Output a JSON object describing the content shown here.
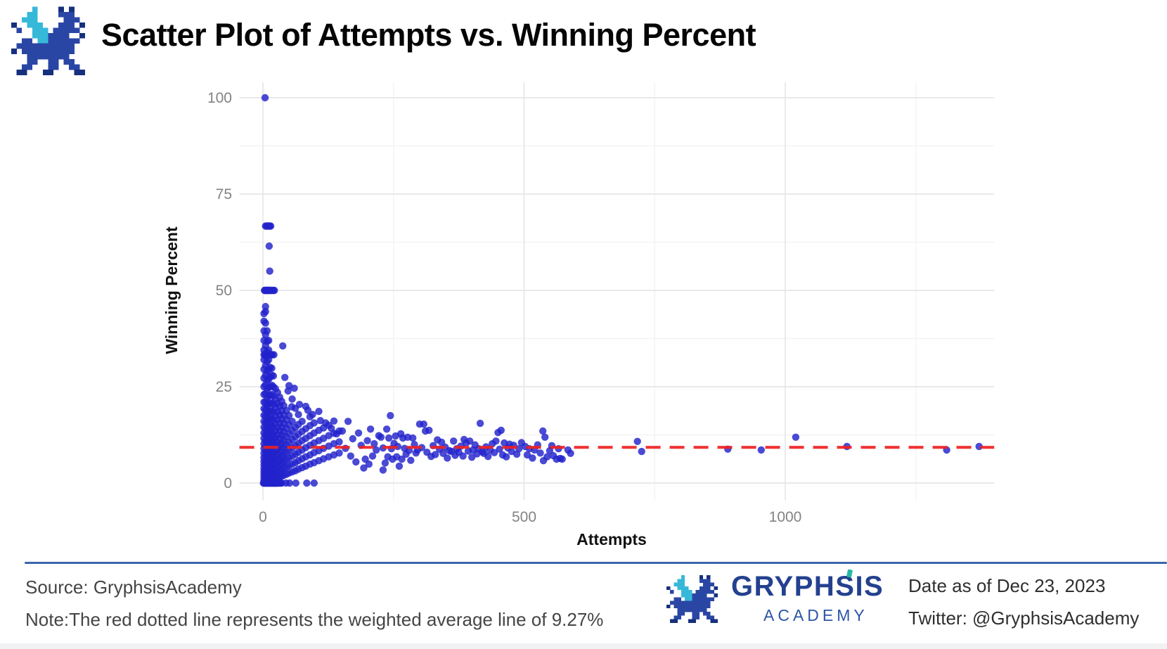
{
  "header": {
    "title": "Scatter Plot of Attempts vs. Winning Percent"
  },
  "footer": {
    "source": "Source: GryphsisAcademy",
    "note": "Note:The red dotted line represents the weighted average line of 9.27%",
    "date": "Date as of Dec 23, 2023",
    "twitter": "Twitter: @GryphsisAcademy",
    "brand_name": "GRYPHSIS",
    "brand_sub": "ACADEMY",
    "rule_color": "#3a66ad"
  },
  "chart_data": {
    "type": "scatter",
    "title": "Scatter Plot of Attempts vs. Winning Percent",
    "xlabel": "Attempts",
    "ylabel": "Winning Percent",
    "x_ticks": [
      0,
      500,
      1000
    ],
    "x_minor_gridlines": [
      250,
      750,
      1250
    ],
    "y_ticks": [
      0,
      25,
      50,
      75,
      100
    ],
    "y_minor_gridlines": [
      12.5,
      37.5,
      62.5,
      87.5
    ],
    "xlim": [
      -45,
      1400
    ],
    "ylim": [
      -4.5,
      104
    ],
    "grid": "on",
    "legend": "none",
    "point_color": "#2222cc",
    "tick_label_color": "#838383",
    "major_grid_color": "#e6e6e6",
    "minor_grid_color": "#f3f3f3",
    "average_line": {
      "value": 9.27,
      "color": "#ee2222",
      "style": "dashed",
      "meaning": "weighted average line of 9.27%"
    },
    "outlier_points": [
      [
        4,
        100
      ],
      [
        12,
        61.5
      ],
      [
        13,
        55
      ]
    ],
    "row_clusters": [
      {
        "y": 66.7,
        "xs": [
          5,
          7,
          9,
          11,
          13,
          15
        ]
      },
      {
        "y": 50,
        "xs": [
          3,
          4,
          5,
          6,
          7,
          8,
          9,
          10,
          11,
          12,
          13,
          14,
          16,
          18,
          20,
          22
        ]
      },
      {
        "y": 33.3,
        "xs": [
          2,
          4,
          6,
          8,
          10,
          12,
          14,
          16,
          18,
          21
        ]
      },
      {
        "y": 0,
        "xs": [
          1,
          2,
          3,
          4,
          5,
          6,
          7,
          8,
          9,
          10,
          11,
          12,
          13,
          14,
          15,
          16,
          17,
          18,
          19,
          20,
          21,
          22,
          23,
          24,
          25,
          26,
          27,
          28,
          30,
          32,
          34,
          36,
          44,
          51,
          63,
          84,
          98
        ]
      }
    ],
    "dense_columns": [
      {
        "x": 2,
        "ys": [
          0.7,
          1.4,
          2.2,
          3,
          3.8,
          4.7,
          5.6,
          6.6,
          7.7,
          8.9,
          10.2,
          11.6,
          13,
          14.5,
          16,
          17.6,
          19.3,
          21,
          23,
          25,
          27.2,
          29.5,
          32,
          34.5,
          37,
          39.5,
          42,
          44
        ]
      },
      {
        "x": 5,
        "ys": [
          1,
          1.8,
          2.7,
          3.6,
          4.6,
          5.7,
          6.9,
          8.2,
          9.6,
          11,
          12.5,
          14,
          15.6,
          17.3,
          19,
          21,
          23.2,
          25.5,
          28,
          30.5,
          33,
          35.7,
          38.5,
          41.5,
          44.5,
          45.8
        ]
      },
      {
        "x": 8,
        "ys": [
          0.6,
          1.5,
          2.5,
          3.5,
          4.6,
          5.8,
          7,
          8.3,
          9.7,
          11.2,
          12.8,
          14.4,
          16.1,
          18,
          20,
          22,
          24.3,
          26.7,
          29,
          31.5,
          34,
          36.8,
          39.5
        ]
      },
      {
        "x": 11,
        "ys": [
          1.2,
          2.3,
          3.4,
          4.6,
          5.8,
          7.1,
          8.5,
          10,
          11.5,
          13.1,
          14.8,
          16.6,
          18.5,
          20.5,
          22.6,
          24.8,
          27,
          29.5,
          32,
          34.5,
          37
        ]
      },
      {
        "x": 14,
        "ys": [
          0.8,
          1.9,
          3.1,
          4.3,
          5.6,
          7,
          8.4,
          9.9,
          11.5,
          13.2,
          15,
          16.8,
          18.7,
          20.7,
          22.8,
          25,
          27.5,
          30,
          33.3
        ]
      },
      {
        "x": 17,
        "ys": [
          1.4,
          2.6,
          3.9,
          5.2,
          6.6,
          8.1,
          9.7,
          11.3,
          13,
          14.8,
          16.7,
          18.7,
          20.8,
          23,
          25.4,
          28,
          29.8
        ]
      },
      {
        "x": 20,
        "ys": [
          0.9,
          2.1,
          3.4,
          4.8,
          6.2,
          7.7,
          9.3,
          10.9,
          12.6,
          14.4,
          16.3,
          18.3,
          20.4,
          22.6,
          25,
          27.8
        ]
      },
      {
        "x": 24,
        "ys": [
          1.1,
          2.4,
          3.8,
          5.2,
          6.7,
          8.3,
          10,
          11.7,
          13.5,
          15.4,
          17.4,
          19.5,
          21.7,
          24.5
        ]
      },
      {
        "x": 28,
        "ys": [
          1.3,
          2.7,
          4.2,
          5.7,
          7.3,
          9,
          10.7,
          12.5,
          14.4,
          16.4,
          18.5,
          20.7,
          23.5
        ]
      },
      {
        "x": 32,
        "ys": [
          1.6,
          3.1,
          4.7,
          6.3,
          8,
          9.8,
          11.7,
          13.6,
          15.6,
          17.7,
          20,
          22.3
        ]
      },
      {
        "x": 36,
        "ys": [
          1.8,
          3.4,
          5.1,
          6.8,
          8.6,
          10.5,
          12.5,
          14.5,
          16.6,
          18.8,
          21.2
        ]
      },
      {
        "x": 40,
        "ys": [
          2,
          3.7,
          5.5,
          7.3,
          9.2,
          11.2,
          13.3,
          15.4,
          17.6,
          20.1
        ]
      },
      {
        "x": 45,
        "ys": [
          2.3,
          4.1,
          6,
          7.9,
          9.9,
          12,
          14.2,
          16.4,
          18.8
        ]
      },
      {
        "x": 50,
        "ys": [
          2.6,
          4.5,
          6.5,
          8.5,
          10.6,
          12.8,
          15.1,
          17.5,
          25.3
        ]
      },
      {
        "x": 56,
        "ys": [
          2.9,
          4.9,
          7,
          9.1,
          11.3,
          13.6,
          16,
          21.8
        ]
      },
      {
        "x": 62,
        "ys": [
          3.2,
          5.3,
          7.5,
          9.7,
          12,
          14.4,
          19.4
        ]
      },
      {
        "x": 68,
        "ys": [
          3.6,
          5.8,
          8,
          10.3,
          12.7,
          15.2,
          17.8
        ]
      },
      {
        "x": 75,
        "ys": [
          4,
          6.3,
          8.6,
          11,
          13.4,
          16
        ]
      },
      {
        "x": 82,
        "ys": [
          4.4,
          6.8,
          9.2,
          11.6,
          14.1,
          19.9
        ]
      },
      {
        "x": 90,
        "ys": [
          4.9,
          7.3,
          9.8,
          12.3,
          14.9,
          17.2
        ]
      },
      {
        "x": 98,
        "ys": [
          5.3,
          7.9,
          10.4,
          13,
          15.6
        ]
      },
      {
        "x": 107,
        "ys": [
          5.8,
          8.4,
          11,
          13.7,
          18.6
        ]
      },
      {
        "x": 116,
        "ys": [
          6.3,
          9,
          11.6,
          14.3
        ]
      },
      {
        "x": 126,
        "ys": [
          6.8,
          9.6,
          12.3,
          15
        ]
      },
      {
        "x": 136,
        "ys": [
          7.3,
          10.2,
          12.9,
          16.1
        ]
      },
      {
        "x": 146,
        "ys": [
          7.8,
          10.7,
          13.5
        ]
      }
    ],
    "scatter_points": [
      [
        38,
        35.6
      ],
      [
        42,
        27.4
      ],
      [
        48,
        23.9
      ],
      [
        55,
        19.8
      ],
      [
        60,
        24.6
      ],
      [
        70,
        20.4
      ],
      [
        86,
        18.9
      ],
      [
        95,
        17.8
      ],
      [
        110,
        16.2
      ],
      [
        120,
        15.6
      ],
      [
        131,
        14.2
      ],
      [
        141,
        12.8
      ],
      [
        152,
        13.5
      ],
      [
        158,
        9
      ],
      [
        163,
        16
      ],
      [
        168,
        7
      ],
      [
        172,
        11.5
      ],
      [
        178,
        5.5
      ],
      [
        183,
        13
      ],
      [
        188,
        9.8
      ],
      [
        193,
        3.9
      ],
      [
        196,
        6.2
      ],
      [
        200,
        11
      ],
      [
        203,
        4.9
      ],
      [
        206,
        14
      ],
      [
        210,
        7
      ],
      [
        213,
        10.2
      ],
      [
        217,
        8.6
      ],
      [
        222,
        12.3
      ],
      [
        226,
        11.9
      ],
      [
        230,
        9.1
      ],
      [
        230,
        3.4
      ],
      [
        234,
        5.2
      ],
      [
        237,
        14
      ],
      [
        239,
        6.8
      ],
      [
        241,
        11.7
      ],
      [
        244,
        17.5
      ],
      [
        246,
        8.9
      ],
      [
        248,
        6.2
      ],
      [
        251,
        10.3
      ],
      [
        254,
        12.2
      ],
      [
        256,
        6.8
      ],
      [
        258,
        9.5
      ],
      [
        261,
        4.4
      ],
      [
        264,
        12.8
      ],
      [
        266,
        6.2
      ],
      [
        268,
        11.7
      ],
      [
        271,
        9
      ],
      [
        274,
        7.5
      ],
      [
        277,
        11.9
      ],
      [
        280,
        8.5
      ],
      [
        283,
        5.9
      ],
      [
        287,
        11.7
      ],
      [
        290,
        10
      ],
      [
        293,
        7.8
      ],
      [
        296,
        8.6
      ],
      [
        300,
        15.3
      ],
      [
        304,
        9.2
      ],
      [
        308,
        15.3
      ],
      [
        311,
        13.5
      ],
      [
        314,
        8
      ],
      [
        318,
        13.7
      ],
      [
        322,
        6.9
      ],
      [
        326,
        9.7
      ],
      [
        330,
        7.4
      ],
      [
        334,
        11.2
      ],
      [
        338,
        8.8
      ],
      [
        342,
        10.6
      ],
      [
        345,
        7.7
      ],
      [
        349,
        9.3
      ],
      [
        353,
        6.5
      ],
      [
        357,
        8.4
      ],
      [
        361,
        8.2
      ],
      [
        365,
        10.9
      ],
      [
        368,
        7.2
      ],
      [
        371,
        8.9
      ],
      [
        375,
        8
      ],
      [
        379,
        9.6
      ],
      [
        383,
        7
      ],
      [
        385,
        11.3
      ],
      [
        389,
        10.4
      ],
      [
        393,
        8.3
      ],
      [
        396,
        10.9
      ],
      [
        400,
        6.7
      ],
      [
        402,
        8.6
      ],
      [
        406,
        9.9
      ],
      [
        410,
        7.6
      ],
      [
        413,
        8.9
      ],
      [
        416,
        15.5
      ],
      [
        420,
        8.1
      ],
      [
        423,
        7.7
      ],
      [
        427,
        9.4
      ],
      [
        431,
        6.9
      ],
      [
        435,
        8.6
      ],
      [
        439,
        10.2
      ],
      [
        443,
        7.9
      ],
      [
        446,
        10.9
      ],
      [
        450,
        13.1
      ],
      [
        453,
        8.8
      ],
      [
        456,
        13.7
      ],
      [
        459,
        7.3
      ],
      [
        462,
        10.4
      ],
      [
        466,
        6.8
      ],
      [
        469,
        9.1
      ],
      [
        472,
        10.1
      ],
      [
        476,
        8.2
      ],
      [
        480,
        9.8
      ],
      [
        486,
        7.5
      ],
      [
        490,
        8.9
      ],
      [
        495,
        10.5
      ],
      [
        502,
        9.5
      ],
      [
        506,
        7.3
      ],
      [
        510,
        8.9
      ],
      [
        516,
        6.5
      ],
      [
        520,
        8.6
      ],
      [
        526,
        9.9
      ],
      [
        531,
        7.8
      ],
      [
        536,
        13.5
      ],
      [
        537,
        5.8
      ],
      [
        540,
        11.9
      ],
      [
        544,
        6.8
      ],
      [
        549,
        8.4
      ],
      [
        553,
        9.7
      ],
      [
        556,
        7.1
      ],
      [
        562,
        6.2
      ],
      [
        566,
        8.9
      ],
      [
        569,
        6.4
      ],
      [
        573,
        6.2
      ],
      [
        584,
        8.6
      ],
      [
        589,
        7.7
      ],
      [
        717,
        10.8
      ],
      [
        725,
        8.2
      ],
      [
        890,
        8.8
      ],
      [
        954,
        8.6
      ],
      [
        1020,
        11.9
      ],
      [
        1118,
        9.5
      ],
      [
        1309,
        8.6
      ],
      [
        1371,
        9.5
      ]
    ]
  }
}
